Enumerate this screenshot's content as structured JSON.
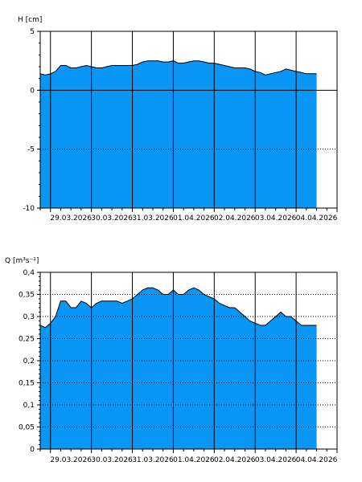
{
  "colors": {
    "fill": "#0a96f5",
    "line": "#000000",
    "axis": "#000000",
    "grid": "#000000",
    "background": "#ffffff"
  },
  "chart_data": [
    {
      "type": "area",
      "ylabel": "H [cm]",
      "ylim": [
        -10,
        5
      ],
      "yticks": [
        5,
        0,
        -5,
        -10
      ],
      "ytick_labels": [
        "5",
        "0",
        "-5",
        "-10"
      ],
      "grid": "horizontal dotted at y=-5; vertical solid at each day",
      "xlim": [
        "28.03.2026 18:00",
        "05.04.2026 00:00"
      ],
      "xtick_labels": [
        "29.03.2026",
        "30.03.2026",
        "31.03.2026",
        "01.04.2026",
        "02.04.2026",
        "03.04.2026",
        "04.04.2026"
      ],
      "baseline": -10,
      "series": [
        {
          "x": [
            "28.03.2026 18:00",
            "28.03.2026 21:00",
            "29.03.2026 00:00",
            "29.03.2026 03:00",
            "29.03.2026 06:00",
            "29.03.2026 09:00",
            "29.03.2026 12:00",
            "29.03.2026 15:00",
            "29.03.2026 18:00",
            "29.03.2026 21:00",
            "30.03.2026 00:00",
            "30.03.2026 03:00",
            "30.03.2026 06:00",
            "30.03.2026 09:00",
            "30.03.2026 12:00",
            "30.03.2026 15:00",
            "30.03.2026 18:00",
            "30.03.2026 21:00",
            "31.03.2026 00:00",
            "31.03.2026 03:00",
            "31.03.2026 06:00",
            "31.03.2026 09:00",
            "31.03.2026 12:00",
            "31.03.2026 15:00",
            "31.03.2026 18:00",
            "31.03.2026 21:00",
            "01.04.2026 00:00",
            "01.04.2026 03:00",
            "01.04.2026 06:00",
            "01.04.2026 09:00",
            "01.04.2026 12:00",
            "01.04.2026 15:00",
            "01.04.2026 18:00",
            "01.04.2026 21:00",
            "02.04.2026 00:00",
            "02.04.2026 03:00",
            "02.04.2026 06:00",
            "02.04.2026 09:00",
            "02.04.2026 12:00",
            "02.04.2026 15:00",
            "02.04.2026 18:00",
            "02.04.2026 21:00",
            "03.04.2026 00:00",
            "03.04.2026 03:00",
            "03.04.2026 06:00",
            "03.04.2026 09:00",
            "03.04.2026 12:00",
            "03.04.2026 15:00",
            "03.04.2026 18:00",
            "03.04.2026 21:00",
            "04.04.2026 00:00",
            "04.04.2026 03:00",
            "04.04.2026 06:00",
            "04.04.2026 09:00",
            "04.04.2026 12:00"
          ],
          "values": [
            1.4,
            1.3,
            1.4,
            1.6,
            2.1,
            2.1,
            1.9,
            1.9,
            2.0,
            2.1,
            2.0,
            1.9,
            1.9,
            2.0,
            2.1,
            2.1,
            2.1,
            2.1,
            2.1,
            2.2,
            2.4,
            2.5,
            2.5,
            2.5,
            2.4,
            2.4,
            2.5,
            2.3,
            2.3,
            2.4,
            2.5,
            2.5,
            2.4,
            2.3,
            2.3,
            2.2,
            2.1,
            2.0,
            1.9,
            1.9,
            1.9,
            1.8,
            1.6,
            1.5,
            1.3,
            1.4,
            1.5,
            1.6,
            1.8,
            1.7,
            1.6,
            1.5,
            1.4,
            1.4,
            1.4
          ]
        }
      ]
    },
    {
      "type": "area",
      "ylabel": "Q [m³s⁻¹]",
      "ylim": [
        0,
        0.4
      ],
      "yticks": [
        0.4,
        0.35,
        0.3,
        0.25,
        0.2,
        0.15,
        0.1,
        0.05,
        0
      ],
      "ytick_labels": [
        "0,4",
        "0,35",
        "0,3",
        "0,25",
        "0,2",
        "0,15",
        "0,1",
        "0,05",
        "0"
      ],
      "grid": "horizontal dotted at each tick; vertical solid at each day",
      "xlim": [
        "28.03.2026 18:00",
        "05.04.2026 00:00"
      ],
      "xtick_labels": [
        "29.03.2026",
        "30.03.2026",
        "31.03.2026",
        "01.04.2026",
        "02.04.2026",
        "03.04.2026",
        "04.04.2026"
      ],
      "baseline": 0,
      "series": [
        {
          "x": [
            "28.03.2026 18:00",
            "28.03.2026 21:00",
            "29.03.2026 00:00",
            "29.03.2026 03:00",
            "29.03.2026 06:00",
            "29.03.2026 09:00",
            "29.03.2026 12:00",
            "29.03.2026 15:00",
            "29.03.2026 18:00",
            "29.03.2026 21:00",
            "30.03.2026 00:00",
            "30.03.2026 03:00",
            "30.03.2026 06:00",
            "30.03.2026 09:00",
            "30.03.2026 12:00",
            "30.03.2026 15:00",
            "30.03.2026 18:00",
            "30.03.2026 21:00",
            "31.03.2026 00:00",
            "31.03.2026 03:00",
            "31.03.2026 06:00",
            "31.03.2026 09:00",
            "31.03.2026 12:00",
            "31.03.2026 15:00",
            "31.03.2026 18:00",
            "31.03.2026 21:00",
            "01.04.2026 00:00",
            "01.04.2026 03:00",
            "01.04.2026 06:00",
            "01.04.2026 09:00",
            "01.04.2026 12:00",
            "01.04.2026 15:00",
            "01.04.2026 18:00",
            "01.04.2026 21:00",
            "02.04.2026 00:00",
            "02.04.2026 03:00",
            "02.04.2026 06:00",
            "02.04.2026 09:00",
            "02.04.2026 12:00",
            "02.04.2026 15:00",
            "02.04.2026 18:00",
            "02.04.2026 21:00",
            "03.04.2026 00:00",
            "03.04.2026 03:00",
            "03.04.2026 06:00",
            "03.04.2026 09:00",
            "03.04.2026 12:00",
            "03.04.2026 15:00",
            "03.04.2026 18:00",
            "03.04.2026 21:00",
            "04.04.2026 00:00",
            "04.04.2026 03:00",
            "04.04.2026 06:00",
            "04.04.2026 09:00",
            "04.04.2026 12:00"
          ],
          "values": [
            0.28,
            0.275,
            0.285,
            0.3,
            0.335,
            0.335,
            0.32,
            0.32,
            0.335,
            0.33,
            0.32,
            0.33,
            0.335,
            0.335,
            0.335,
            0.335,
            0.33,
            0.335,
            0.34,
            0.35,
            0.36,
            0.365,
            0.365,
            0.36,
            0.35,
            0.35,
            0.36,
            0.35,
            0.35,
            0.36,
            0.365,
            0.36,
            0.35,
            0.345,
            0.34,
            0.33,
            0.325,
            0.32,
            0.32,
            0.31,
            0.3,
            0.29,
            0.285,
            0.28,
            0.28,
            0.29,
            0.3,
            0.31,
            0.3,
            0.3,
            0.29,
            0.28,
            0.28,
            0.28,
            0.28
          ]
        }
      ]
    }
  ]
}
